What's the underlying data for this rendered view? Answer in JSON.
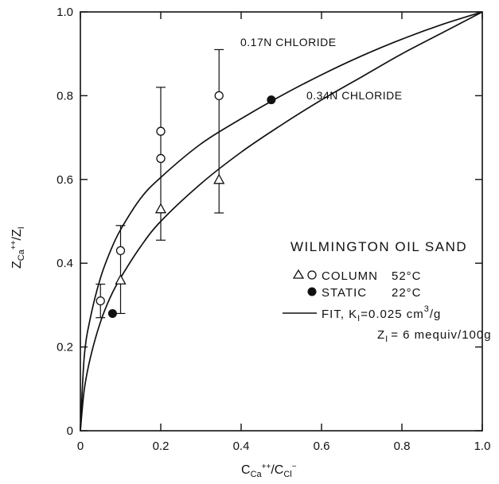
{
  "chart_data": {
    "type": "scatter",
    "xlabel": {
      "main": "C",
      "sub1": "Ca",
      "sup1": "++",
      "slash": "/C",
      "sub2": "Cl",
      "sup2": "−"
    },
    "ylabel": {
      "main": "Z",
      "sub1": "Ca",
      "sup1": "++",
      "slash": "/Z",
      "sub2": "I"
    },
    "xlim": [
      0,
      1
    ],
    "ylim": [
      0,
      1
    ],
    "x_ticks": [
      "0",
      "0.2",
      "0.4",
      "0.6",
      "0.8",
      "1.0"
    ],
    "y_ticks": [
      "0",
      "0.2",
      "0.4",
      "0.6",
      "0.8",
      "1.0"
    ],
    "grid": false,
    "legend_placement": "center-right",
    "curves": [
      {
        "label": "0.17N CHLORIDE",
        "x": [
          0,
          0.01,
          0.025,
          0.05,
          0.075,
          0.1,
          0.15,
          0.2,
          0.3,
          0.4,
          0.5,
          0.6,
          0.7,
          0.8,
          0.9,
          1.0
        ],
        "y": [
          0,
          0.18,
          0.27,
          0.365,
          0.43,
          0.48,
          0.555,
          0.605,
          0.685,
          0.745,
          0.8,
          0.85,
          0.895,
          0.935,
          0.97,
          1.0
        ]
      },
      {
        "label": "0.34N CHLORIDE",
        "x": [
          0,
          0.01,
          0.025,
          0.05,
          0.075,
          0.1,
          0.15,
          0.2,
          0.3,
          0.4,
          0.5,
          0.6,
          0.7,
          0.8,
          0.9,
          1.0
        ],
        "y": [
          0,
          0.1,
          0.175,
          0.26,
          0.32,
          0.365,
          0.44,
          0.5,
          0.59,
          0.665,
          0.73,
          0.79,
          0.845,
          0.9,
          0.95,
          1.0
        ]
      }
    ],
    "series": [
      {
        "name": "COLUMN 52°C",
        "marker": "circle-open",
        "points": [
          {
            "x": 0.05,
            "y": 0.31,
            "err_lo": 0.27,
            "err_hi": 0.35
          },
          {
            "x": 0.1,
            "y": 0.43,
            "err_lo": 0.28,
            "err_hi": 0.49
          },
          {
            "x": 0.2,
            "y": 0.65,
            "err_lo": 0.455,
            "err_hi": 0.82
          },
          {
            "x": 0.2,
            "y": 0.715
          },
          {
            "x": 0.345,
            "y": 0.8,
            "err_lo": 0.52,
            "err_hi": 0.91
          }
        ]
      },
      {
        "name": "COLUMN 52°C",
        "marker": "triangle-open",
        "points": [
          {
            "x": 0.1,
            "y": 0.36
          },
          {
            "x": 0.2,
            "y": 0.53
          },
          {
            "x": 0.345,
            "y": 0.6
          }
        ]
      },
      {
        "name": "STATIC 22°C",
        "marker": "circle-filled",
        "points": [
          {
            "x": 0.08,
            "y": 0.28
          },
          {
            "x": 0.475,
            "y": 0.79
          }
        ]
      }
    ],
    "legend": {
      "title": "WILMINGTON OIL SAND",
      "column_label": "COLUMN",
      "column_temp": "52°C",
      "static_label": "STATIC",
      "static_temp": "22°C",
      "fit_label": "FIT, K",
      "fit_sub": "I",
      "fit_eq": "=0.025 cm",
      "fit_sup": "3",
      "fit_unit": "/g",
      "zi_label": "Z",
      "zi_sub": "I",
      "zi_eq": "= 6 mequiv/100g"
    }
  }
}
